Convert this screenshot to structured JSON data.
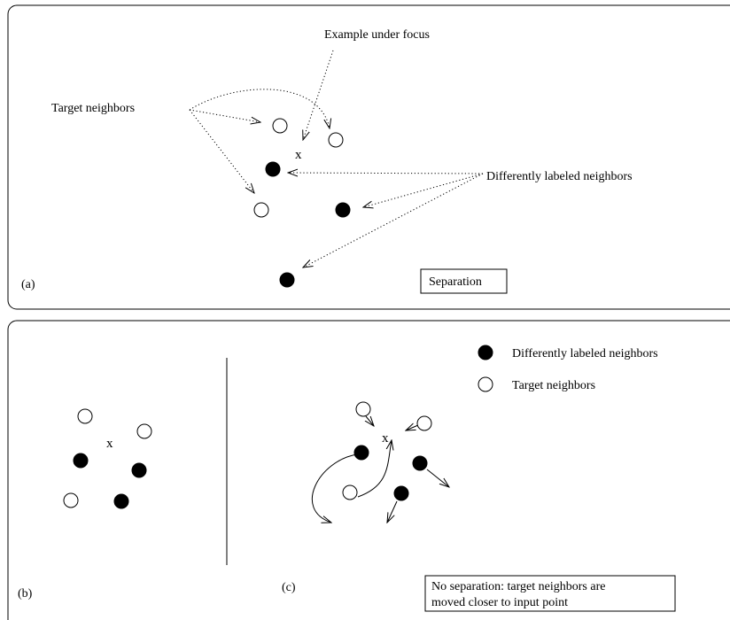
{
  "panel_a": {
    "tag": "(a)",
    "example_label": "Example under focus",
    "target_label": "Target neighbors",
    "different_label": "Differently labeled neighbors",
    "x_mark": "x",
    "box_text": "Separation"
  },
  "panel_bc": {
    "tag_b": "(b)",
    "tag_c": "(c)",
    "x_mark_b": "x",
    "x_mark_c": "x",
    "legend_filled": "Differently labeled neighbors",
    "legend_open": "Target neighbors",
    "box_line1": "No separation: target neighbors are",
    "box_line2": "moved closer to input point"
  }
}
